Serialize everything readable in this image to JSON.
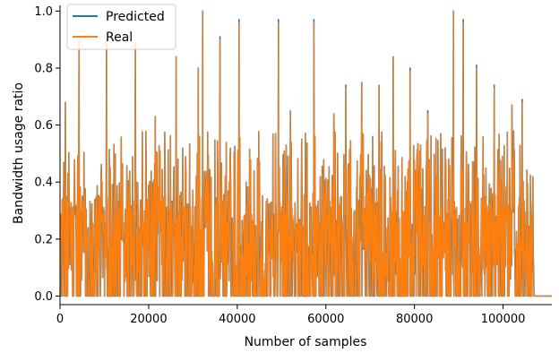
{
  "chart_data": {
    "type": "line",
    "xlabel": "Number of samples",
    "ylabel": "Bandwidth usage ratio",
    "xlim": [
      0,
      111000
    ],
    "ylim": [
      -0.03,
      1.02
    ],
    "xticks": [
      0,
      20000,
      40000,
      60000,
      80000,
      100000
    ],
    "xtick_labels": [
      "0",
      "20000",
      "40000",
      "60000",
      "80000",
      "100000"
    ],
    "yticks": [
      0.0,
      0.2,
      0.4,
      0.6,
      0.8,
      1.0
    ],
    "ytick_labels": [
      "0.0",
      "0.2",
      "0.4",
      "0.6",
      "0.8",
      "1.0"
    ],
    "grid": false,
    "legend_position": "top-left",
    "data_end_x": 106800,
    "series": [
      {
        "name": "Predicted",
        "color": "#1f77b4",
        "peaks": [
          [
            1200,
            0.68
          ],
          [
            4300,
            0.9
          ],
          [
            10500,
            0.9
          ],
          [
            17000,
            0.89
          ],
          [
            21500,
            0.63
          ],
          [
            26200,
            0.84
          ],
          [
            31200,
            0.8
          ],
          [
            32200,
            1.0
          ],
          [
            36100,
            0.91
          ],
          [
            40400,
            0.97
          ],
          [
            49300,
            0.97
          ],
          [
            52000,
            0.65
          ],
          [
            57300,
            0.97
          ],
          [
            61800,
            0.64
          ],
          [
            64500,
            0.74
          ],
          [
            68100,
            0.75
          ],
          [
            72000,
            0.74
          ],
          [
            75200,
            0.84
          ],
          [
            79000,
            0.8
          ],
          [
            83000,
            0.65
          ],
          [
            88800,
            1.0
          ],
          [
            91000,
            0.97
          ],
          [
            94000,
            0.81
          ],
          [
            98000,
            0.74
          ],
          [
            102000,
            0.67
          ],
          [
            104300,
            0.69
          ]
        ]
      },
      {
        "name": "Real",
        "color": "#ff7f0e",
        "peaks": [
          [
            1200,
            0.68
          ],
          [
            4300,
            0.9
          ],
          [
            10500,
            0.9
          ],
          [
            17000,
            0.89
          ],
          [
            21500,
            0.63
          ],
          [
            26200,
            0.84
          ],
          [
            31200,
            0.8
          ],
          [
            32200,
            1.0
          ],
          [
            36100,
            0.9
          ],
          [
            40400,
            0.96
          ],
          [
            49300,
            0.96
          ],
          [
            52000,
            0.65
          ],
          [
            57300,
            0.96
          ],
          [
            61800,
            0.64
          ],
          [
            64500,
            0.73
          ],
          [
            68100,
            0.75
          ],
          [
            72000,
            0.74
          ],
          [
            75200,
            0.84
          ],
          [
            79000,
            0.79
          ],
          [
            83000,
            0.64
          ],
          [
            88800,
            1.0
          ],
          [
            91000,
            0.96
          ],
          [
            94000,
            0.8
          ],
          [
            98000,
            0.73
          ],
          [
            102000,
            0.67
          ],
          [
            104300,
            0.68
          ]
        ]
      }
    ]
  }
}
